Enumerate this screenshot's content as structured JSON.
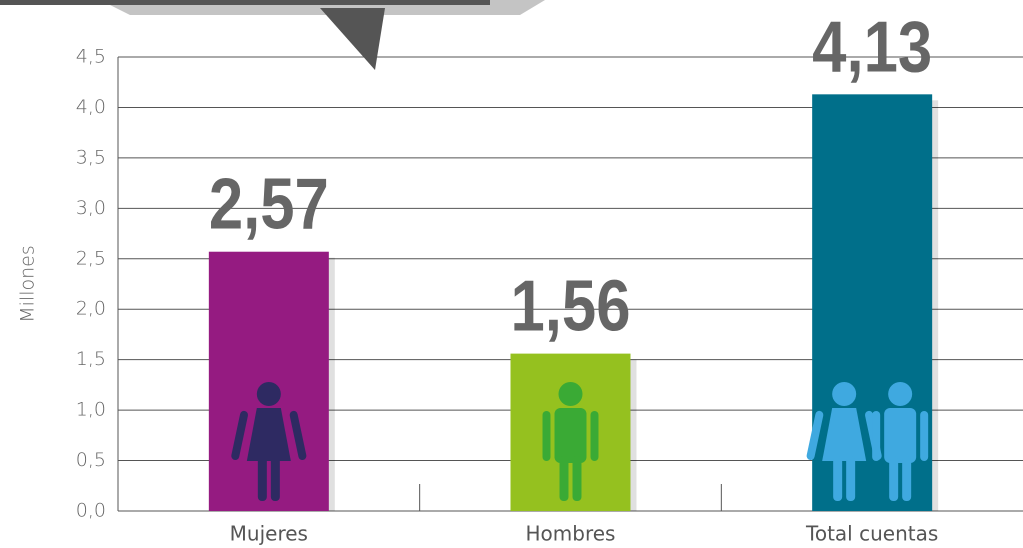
{
  "chart_data": {
    "type": "bar",
    "y_label": "Millones",
    "categories": [
      "Mujeres",
      "Hombres",
      "Total cuentas"
    ],
    "values": [
      2.57,
      1.56,
      4.13
    ],
    "value_labels": [
      "2,57",
      "1,56",
      "4,13"
    ],
    "colors": [
      "#951b81",
      "#95c11f",
      "#006f8a"
    ],
    "ylim": [
      0,
      4.5
    ],
    "yticks": [
      {
        "value": 0,
        "label": "0,0"
      },
      {
        "value": 0.5,
        "label": "0,5"
      },
      {
        "value": 1,
        "label": "1,0"
      },
      {
        "value": 1.5,
        "label": "1,5"
      },
      {
        "value": 2,
        "label": "2,0"
      },
      {
        "value": 2.5,
        "label": "2,5"
      },
      {
        "value": 3,
        "label": "3,0"
      },
      {
        "value": 3.5,
        "label": "3,5"
      },
      {
        "value": 4,
        "label": "4,0"
      },
      {
        "value": 4.5,
        "label": "4,5"
      }
    ],
    "grid": true
  }
}
